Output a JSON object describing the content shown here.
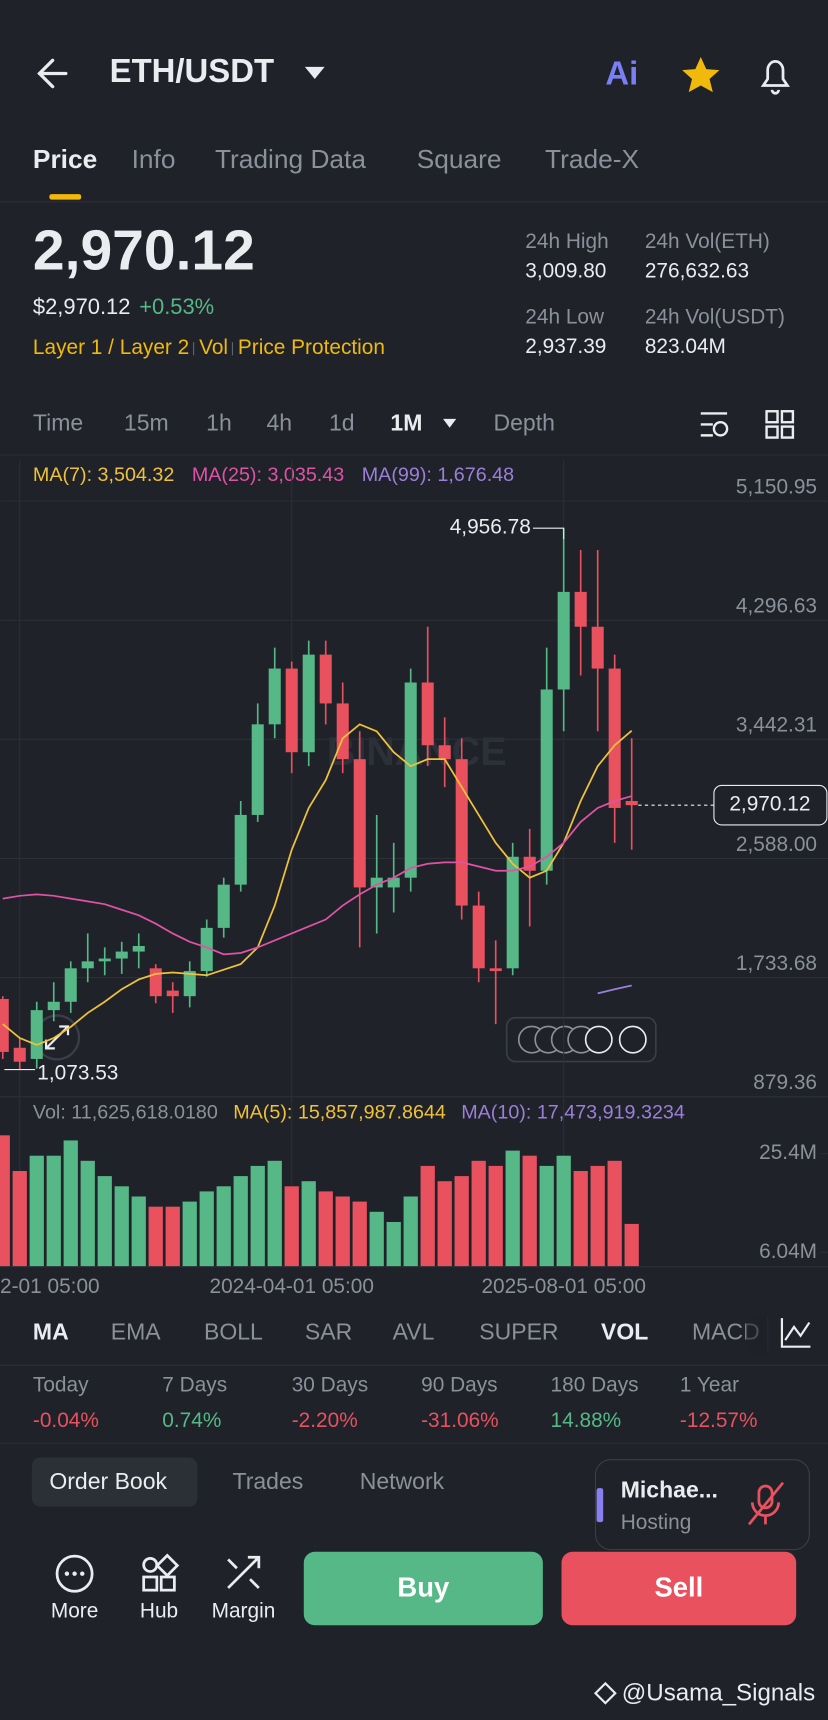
{
  "header": {
    "title": "ETH/USDT",
    "ai": "Ai"
  },
  "tabs": [
    "Price",
    "Info",
    "Trading Data",
    "Square",
    "Trade-X"
  ],
  "price": {
    "last": "2,970.12",
    "usd": "$2,970.12",
    "change": "+0.53%",
    "tags": [
      "Layer 1 / Layer 2",
      "Vol",
      "Price Protection"
    ]
  },
  "stats": [
    {
      "label": "24h High",
      "value": "3,009.80"
    },
    {
      "label": "24h Vol(ETH)",
      "value": "276,632.63"
    },
    {
      "label": "24h Low",
      "value": "2,937.39"
    },
    {
      "label": "24h Vol(USDT)",
      "value": "823.04M"
    }
  ],
  "intervals": [
    "Time",
    "15m",
    "1h",
    "4h",
    "1d",
    "1M",
    "Depth"
  ],
  "chart_data": {
    "type": "candlestick",
    "watermark": "BINANCE",
    "up_color": "#55b886",
    "down_color": "#e9515f",
    "ma_legend": [
      {
        "text": "MA(7): 3,504.32",
        "color": "#f0c23a"
      },
      {
        "text": "MA(25): 3,035.43",
        "color": "#e052a6"
      },
      {
        "text": "MA(99): 1,676.48",
        "color": "#9b7fd9"
      }
    ],
    "categories": [
      null,
      "2-01 05:00",
      null,
      null,
      null,
      null,
      null,
      null,
      null,
      null,
      null,
      null,
      null,
      null,
      null,
      null,
      null,
      "2024-04-01 05:00",
      null,
      null,
      null,
      null,
      null,
      null,
      null,
      null,
      null,
      null,
      null,
      null,
      null,
      null,
      null,
      "2025-08-01 05:00",
      null,
      null,
      null,
      null
    ],
    "open": [
      1580,
      1230,
      1150,
      1500,
      1560,
      1800,
      1850,
      1870,
      1920,
      1800,
      1640,
      1600,
      1780,
      2090,
      2400,
      2900,
      3550,
      3950,
      3350,
      4050,
      3700,
      3300,
      2380,
      2380,
      2450,
      3850,
      3400,
      3300,
      2250,
      1800,
      1800,
      2600,
      2500,
      3800,
      4500,
      4250,
      3950,
      3000
    ],
    "high": [
      1600,
      1300,
      1560,
      1700,
      1850,
      2050,
      1950,
      1990,
      2050,
      1830,
      1700,
      1850,
      2150,
      2450,
      3000,
      3700,
      4100,
      4000,
      4150,
      4150,
      3850,
      3500,
      2900,
      2700,
      3950,
      4250,
      3600,
      3450,
      2350,
      2000,
      2700,
      2800,
      4100,
      4956.78,
      4800,
      4800,
      4050,
      3450
    ],
    "low": [
      1150,
      1073.53,
      1080,
      1420,
      1480,
      1700,
      1750,
      1760,
      1800,
      1550,
      1480,
      1520,
      1740,
      2020,
      2350,
      2850,
      3450,
      3200,
      3250,
      3550,
      3200,
      1950,
      2050,
      2200,
      2350,
      3250,
      3100,
      2150,
      1700,
      1400,
      1750,
      2100,
      2400,
      3500,
      3900,
      3500,
      2700,
      2650
    ],
    "close": [
      1200,
      1130,
      1500,
      1560,
      1800,
      1850,
      1870,
      1920,
      1960,
      1600,
      1600,
      1780,
      2090,
      2400,
      2900,
      3550,
      3950,
      3350,
      4050,
      3700,
      3300,
      2380,
      2450,
      2450,
      3850,
      3400,
      3300,
      2250,
      1800,
      1780,
      2600,
      2500,
      3800,
      4500,
      4250,
      3950,
      2950,
      2970.12
    ],
    "ma7": [
      1400,
      1300,
      1250,
      1300,
      1380,
      1480,
      1560,
      1650,
      1720,
      1760,
      1770,
      1760,
      1750,
      1790,
      1830,
      1950,
      2250,
      2650,
      2950,
      3150,
      3450,
      3550,
      3500,
      3350,
      3250,
      3300,
      3300,
      3100,
      2900,
      2700,
      2550,
      2450,
      2500,
      2700,
      3000,
      3250,
      3400,
      3504.32
    ],
    "ma25": [
      2300,
      2320,
      2330,
      2320,
      2300,
      2280,
      2260,
      2220,
      2180,
      2120,
      2050,
      1990,
      1950,
      1900,
      1910,
      1950,
      2000,
      2050,
      2100,
      2150,
      2250,
      2330,
      2400,
      2450,
      2520,
      2550,
      2560,
      2560,
      2530,
      2500,
      2500,
      2530,
      2600,
      2700,
      2850,
      2950,
      3000,
      3035.43
    ],
    "ma99": [
      null,
      null,
      null,
      null,
      null,
      null,
      null,
      null,
      null,
      null,
      null,
      null,
      null,
      null,
      null,
      null,
      null,
      null,
      null,
      null,
      null,
      null,
      null,
      null,
      null,
      null,
      null,
      null,
      null,
      null,
      null,
      null,
      null,
      null,
      null,
      1620,
      1650,
      1676.48
    ],
    "ylim": [
      879.36,
      5441.7
    ],
    "yticks": [
      {
        "value": 5150.95,
        "label": "5,150.95"
      },
      {
        "value": 4296.63,
        "label": "4,296.63"
      },
      {
        "value": 3442.31,
        "label": "3,442.31"
      },
      {
        "value": 2588.0,
        "label": "2,588.00"
      },
      {
        "value": 1733.68,
        "label": "1,733.68"
      },
      {
        "value": 879.36,
        "label": "879.36"
      }
    ],
    "annotations": [
      {
        "text": "4,956.78",
        "value": 4956.78
      },
      {
        "text": "1,073.53",
        "value": 1073.53
      }
    ],
    "last_price": {
      "value": 2970.12,
      "label": "2,970.12"
    },
    "volume_legend": [
      {
        "text": "Vol: 11,625,618.0180",
        "color": "#8b909a"
      },
      {
        "text": "MA(5): 15,857,987.8644",
        "color": "#f0c23a"
      },
      {
        "text": "MA(10): 17,473,919.3234",
        "color": "#9b7fd9"
      }
    ],
    "volume": [
      29000000,
      22000000,
      25000000,
      25000000,
      28000000,
      24000000,
      21000000,
      19000000,
      17000000,
      15000000,
      15000000,
      16000000,
      18000000,
      19000000,
      21000000,
      23000000,
      24000000,
      19000000,
      20000000,
      18000000,
      17000000,
      16000000,
      14000000,
      12000000,
      17000000,
      23000000,
      20000000,
      21000000,
      24000000,
      23000000,
      26000000,
      25000000,
      23000000,
      25000000,
      22000000,
      23000000,
      24000000,
      11625618.018
    ],
    "vylim": [
      3240000,
      30130000
    ],
    "vyticks": [
      {
        "value": 25400000,
        "label": "25.4M"
      },
      {
        "value": 6040000,
        "label": "6.04M"
      }
    ]
  },
  "indicators": [
    "MA",
    "EMA",
    "BOLL",
    "SAR",
    "AVL",
    "SUPER",
    "VOL",
    "MACD"
  ],
  "performance": [
    {
      "label": "Today",
      "value": "-0.04%"
    },
    {
      "label": "7 Days",
      "value": "0.74%"
    },
    {
      "label": "30 Days",
      "value": "-2.20%"
    },
    {
      "label": "90 Days",
      "value": "-31.06%"
    },
    {
      "label": "180 Days",
      "value": "14.88%"
    },
    {
      "label": "1 Year",
      "value": "-12.57%"
    }
  ],
  "bottom_tabs": [
    "Order Book",
    "Trades",
    "Network"
  ],
  "live": {
    "name": "Michae...",
    "status": "Hosting"
  },
  "actions": [
    "More",
    "Hub",
    "Margin"
  ],
  "buy": "Buy",
  "sell": "Sell",
  "watermark": "@Usama_Signals"
}
